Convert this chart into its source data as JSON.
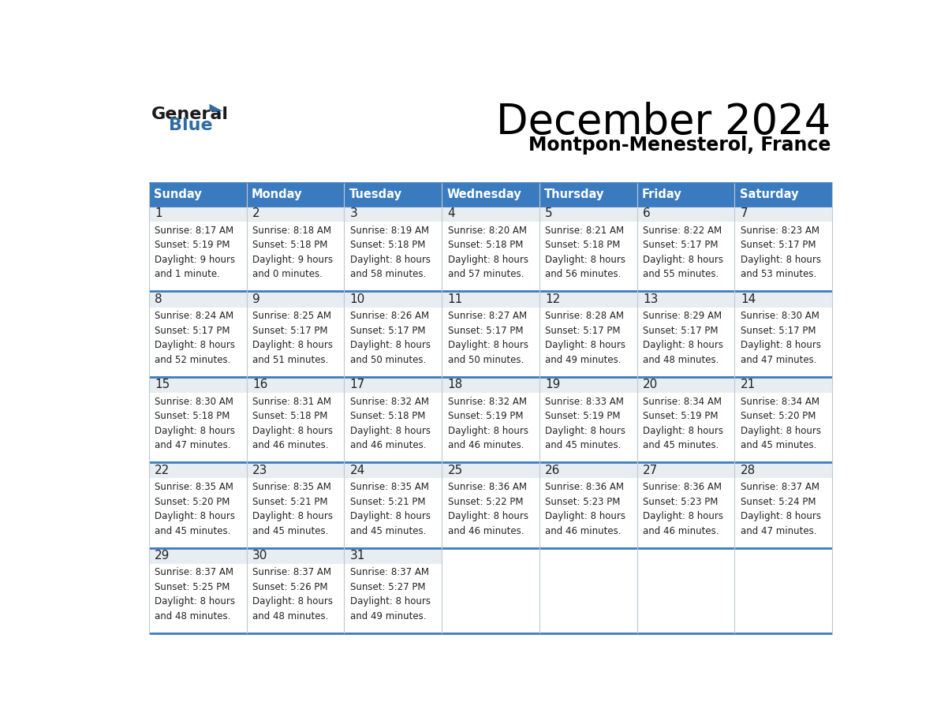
{
  "title": "December 2024",
  "subtitle": "Montpon-Menesterol, France",
  "header_color": "#3a7bbf",
  "header_text_color": "#ffffff",
  "day_num_bg_color": "#e8edf2",
  "cell_content_bg_color": "#ffffff",
  "text_color": "#222222",
  "border_color": "#3a7bbf",
  "inner_border_color": "#c0c8d0",
  "days_of_week": [
    "Sunday",
    "Monday",
    "Tuesday",
    "Wednesday",
    "Thursday",
    "Friday",
    "Saturday"
  ],
  "calendar_data": [
    [
      {
        "day": 1,
        "sunrise": "8:17 AM",
        "sunset": "5:19 PM",
        "daylight": "9 hours\nand 1 minute."
      },
      {
        "day": 2,
        "sunrise": "8:18 AM",
        "sunset": "5:18 PM",
        "daylight": "9 hours\nand 0 minutes."
      },
      {
        "day": 3,
        "sunrise": "8:19 AM",
        "sunset": "5:18 PM",
        "daylight": "8 hours\nand 58 minutes."
      },
      {
        "day": 4,
        "sunrise": "8:20 AM",
        "sunset": "5:18 PM",
        "daylight": "8 hours\nand 57 minutes."
      },
      {
        "day": 5,
        "sunrise": "8:21 AM",
        "sunset": "5:18 PM",
        "daylight": "8 hours\nand 56 minutes."
      },
      {
        "day": 6,
        "sunrise": "8:22 AM",
        "sunset": "5:17 PM",
        "daylight": "8 hours\nand 55 minutes."
      },
      {
        "day": 7,
        "sunrise": "8:23 AM",
        "sunset": "5:17 PM",
        "daylight": "8 hours\nand 53 minutes."
      }
    ],
    [
      {
        "day": 8,
        "sunrise": "8:24 AM",
        "sunset": "5:17 PM",
        "daylight": "8 hours\nand 52 minutes."
      },
      {
        "day": 9,
        "sunrise": "8:25 AM",
        "sunset": "5:17 PM",
        "daylight": "8 hours\nand 51 minutes."
      },
      {
        "day": 10,
        "sunrise": "8:26 AM",
        "sunset": "5:17 PM",
        "daylight": "8 hours\nand 50 minutes."
      },
      {
        "day": 11,
        "sunrise": "8:27 AM",
        "sunset": "5:17 PM",
        "daylight": "8 hours\nand 50 minutes."
      },
      {
        "day": 12,
        "sunrise": "8:28 AM",
        "sunset": "5:17 PM",
        "daylight": "8 hours\nand 49 minutes."
      },
      {
        "day": 13,
        "sunrise": "8:29 AM",
        "sunset": "5:17 PM",
        "daylight": "8 hours\nand 48 minutes."
      },
      {
        "day": 14,
        "sunrise": "8:30 AM",
        "sunset": "5:17 PM",
        "daylight": "8 hours\nand 47 minutes."
      }
    ],
    [
      {
        "day": 15,
        "sunrise": "8:30 AM",
        "sunset": "5:18 PM",
        "daylight": "8 hours\nand 47 minutes."
      },
      {
        "day": 16,
        "sunrise": "8:31 AM",
        "sunset": "5:18 PM",
        "daylight": "8 hours\nand 46 minutes."
      },
      {
        "day": 17,
        "sunrise": "8:32 AM",
        "sunset": "5:18 PM",
        "daylight": "8 hours\nand 46 minutes."
      },
      {
        "day": 18,
        "sunrise": "8:32 AM",
        "sunset": "5:19 PM",
        "daylight": "8 hours\nand 46 minutes."
      },
      {
        "day": 19,
        "sunrise": "8:33 AM",
        "sunset": "5:19 PM",
        "daylight": "8 hours\nand 45 minutes."
      },
      {
        "day": 20,
        "sunrise": "8:34 AM",
        "sunset": "5:19 PM",
        "daylight": "8 hours\nand 45 minutes."
      },
      {
        "day": 21,
        "sunrise": "8:34 AM",
        "sunset": "5:20 PM",
        "daylight": "8 hours\nand 45 minutes."
      }
    ],
    [
      {
        "day": 22,
        "sunrise": "8:35 AM",
        "sunset": "5:20 PM",
        "daylight": "8 hours\nand 45 minutes."
      },
      {
        "day": 23,
        "sunrise": "8:35 AM",
        "sunset": "5:21 PM",
        "daylight": "8 hours\nand 45 minutes."
      },
      {
        "day": 24,
        "sunrise": "8:35 AM",
        "sunset": "5:21 PM",
        "daylight": "8 hours\nand 45 minutes."
      },
      {
        "day": 25,
        "sunrise": "8:36 AM",
        "sunset": "5:22 PM",
        "daylight": "8 hours\nand 46 minutes."
      },
      {
        "day": 26,
        "sunrise": "8:36 AM",
        "sunset": "5:23 PM",
        "daylight": "8 hours\nand 46 minutes."
      },
      {
        "day": 27,
        "sunrise": "8:36 AM",
        "sunset": "5:23 PM",
        "daylight": "8 hours\nand 46 minutes."
      },
      {
        "day": 28,
        "sunrise": "8:37 AM",
        "sunset": "5:24 PM",
        "daylight": "8 hours\nand 47 minutes."
      }
    ],
    [
      {
        "day": 29,
        "sunrise": "8:37 AM",
        "sunset": "5:25 PM",
        "daylight": "8 hours\nand 48 minutes."
      },
      {
        "day": 30,
        "sunrise": "8:37 AM",
        "sunset": "5:26 PM",
        "daylight": "8 hours\nand 48 minutes."
      },
      {
        "day": 31,
        "sunrise": "8:37 AM",
        "sunset": "5:27 PM",
        "daylight": "8 hours\nand 49 minutes."
      },
      null,
      null,
      null,
      null
    ]
  ],
  "logo_general_color": "#1a1a1a",
  "logo_blue_color": "#2e6da4"
}
